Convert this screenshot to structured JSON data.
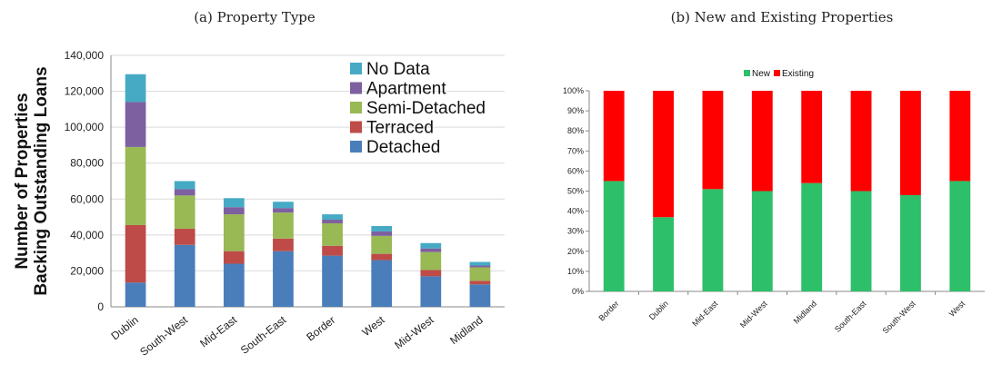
{
  "captions": {
    "a": "(a) Property Type",
    "b": "(b) New and Existing Properties"
  },
  "chart_data": [
    {
      "type": "bar",
      "stacked": true,
      "title": "(a) Property Type",
      "ylabel_line1": "Number of Properties",
      "ylabel_line2": "Backing Outstanding Loans",
      "xlabel": "",
      "ylim": [
        0,
        140000
      ],
      "yticks": [
        "0",
        "20,000",
        "40,000",
        "60,000",
        "80,000",
        "100,000",
        "120,000",
        "140,000"
      ],
      "grid": true,
      "legend_position": "top-right",
      "categories": [
        "Dublin",
        "South-West",
        "Mid-East",
        "South-East",
        "Border",
        "West",
        "Mid-West",
        "Midland"
      ],
      "series": [
        {
          "name": "Detached",
          "color": "#4a7ebb",
          "values": [
            13500,
            34500,
            24000,
            31000,
            28500,
            26000,
            17000,
            12500
          ]
        },
        {
          "name": "Terraced",
          "color": "#be4b48",
          "values": [
            32000,
            9000,
            7000,
            7000,
            5500,
            3500,
            3500,
            2000
          ]
        },
        {
          "name": "Semi-Detached",
          "color": "#98b954",
          "values": [
            43500,
            18500,
            20500,
            14500,
            12500,
            10000,
            10000,
            7500
          ]
        },
        {
          "name": "Apartment",
          "color": "#7d60a0",
          "values": [
            25000,
            3500,
            4000,
            2500,
            2000,
            2500,
            2000,
            1000
          ]
        },
        {
          "name": "No Data",
          "color": "#46aac5",
          "values": [
            15500,
            4500,
            5000,
            3500,
            3000,
            3000,
            3000,
            2000
          ]
        }
      ]
    },
    {
      "type": "bar",
      "stacked": true,
      "percent": true,
      "title": "(b) New and Existing Properties",
      "xlabel": "",
      "ylabel": "",
      "ylim": [
        0,
        100
      ],
      "yticks": [
        "0%",
        "10%",
        "20%",
        "30%",
        "40%",
        "50%",
        "60%",
        "70%",
        "80%",
        "90%",
        "100%"
      ],
      "grid": false,
      "legend_position": "top-center",
      "categories": [
        "Border",
        "Dublin",
        "Mid-East",
        "Mid-West",
        "Midland",
        "South-East",
        "South-West",
        "West"
      ],
      "series": [
        {
          "name": "New",
          "color": "#2dbf6a",
          "values": [
            55,
            37,
            51,
            50,
            54,
            50,
            48,
            55
          ]
        },
        {
          "name": "Existing",
          "color": "#ff0000",
          "values": [
            45,
            63,
            49,
            50,
            46,
            50,
            52,
            45
          ]
        }
      ]
    }
  ]
}
